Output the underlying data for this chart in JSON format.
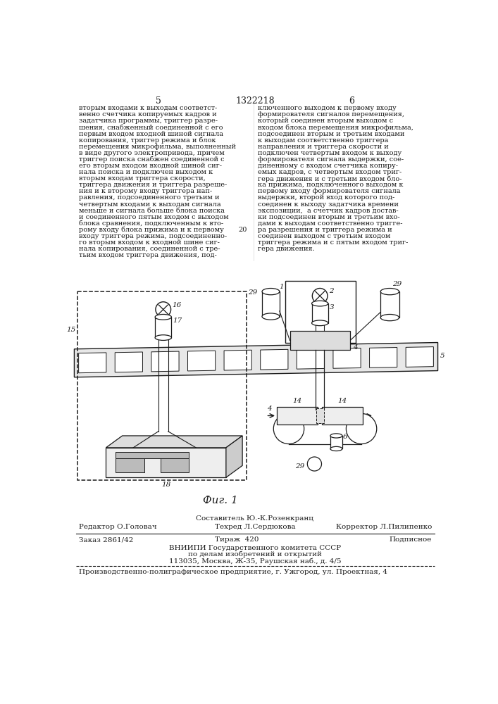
{
  "page_number_left": "5",
  "page_number_center": "1322218",
  "page_number_right": "6",
  "col_left_text": [
    "вторым входами к выходам соответст-",
    "венно счетчика копируемых кадров и",
    "задатчика программы, триггер разре-",
    "шения, снабженный соединенной с его",
    "первым входом входной шиной сигнала",
    "копирования, триггер режима и блок",
    "перемещения микрофильма, выполненный",
    "в виде другого электропривода, причем",
    "триггер поиска снабжен соединенной с",
    "его вторым входом входной шиной сиг-",
    "нала поиска и подключен выходом к",
    "вторым входам триггера скорости,",
    "триггера движения и триггера разреше-",
    "ния и к второму входу триггера нап-",
    "равления, подсоединенного третьим и",
    "четвертым входами к выходам сигнала",
    "меньше и сигнала больше блока поиска",
    "и соединенного пятым входом с выходом",
    "блока сравнения, подключенным к вто-",
    "рому входу блока прижима и к первому",
    "входу триггера режима, подсоединенно-",
    "го вторым входом к входной шине сиг-",
    "нала копирования, соединенной с тре-",
    "тьим входом триггера движения, под-"
  ],
  "line_number": "20",
  "col_right_text": [
    "ключенного выходом к первому входу",
    "формирователя сигналов перемещения,",
    "который соединен вторым выходом с",
    "входом блока перемещения микрофильма,",
    "подсоединен вторым и третьим входами",
    "к выходам соответственно триггера",
    "направления и триггера скорости и",
    "подключен четвертым входом к выходу",
    "формирователя сигнала выдержки, сое-",
    "диненному с входом счетчика копиру-",
    "емых кадров, с четвертым входом триг-",
    "гера движения и с третьим входом бло-",
    "ка прижима, подключенного выходом к",
    "первому входу формирователя сигнала",
    "выдержки, второй вход которого под-",
    "соединен к выходу задатчика времени",
    "экспозиции,  а счетчик кадров достав-",
    "ки подсоединен вторым и третьим вхо-",
    "дами к выходам соответственно тригге-",
    "ра разрешения и триггера режима и",
    "соединен выходом с третьим входом",
    "триггера режима и с пятым входом триг-",
    "гера движения."
  ],
  "fig_caption": "Фиг. 1",
  "footer_author": "Составитель Ю.-К.Розенкранц",
  "footer_editor": "Редактор О.Головач",
  "footer_techred": "Техред Л.Сердюкова",
  "footer_corrector": "Корректор Л.Пилипенко",
  "footer_order": "Заказ 2861/42",
  "footer_tirage": "Тираж  420",
  "footer_podpisnoe": "Подписное",
  "footer_org_line1": "ВНИИПИ Государственного комитета СССР",
  "footer_org_line2": "по делам изобретений и открытий",
  "footer_org_line3": "113035, Москва, Ж-35, Раушская наб., д. 4/5",
  "footer_printer": "Производственно-полиграфическое предприятие, г. Ужгород, ул. Проектная, 4",
  "background_color": "#ffffff",
  "text_color": "#1a1a1a"
}
